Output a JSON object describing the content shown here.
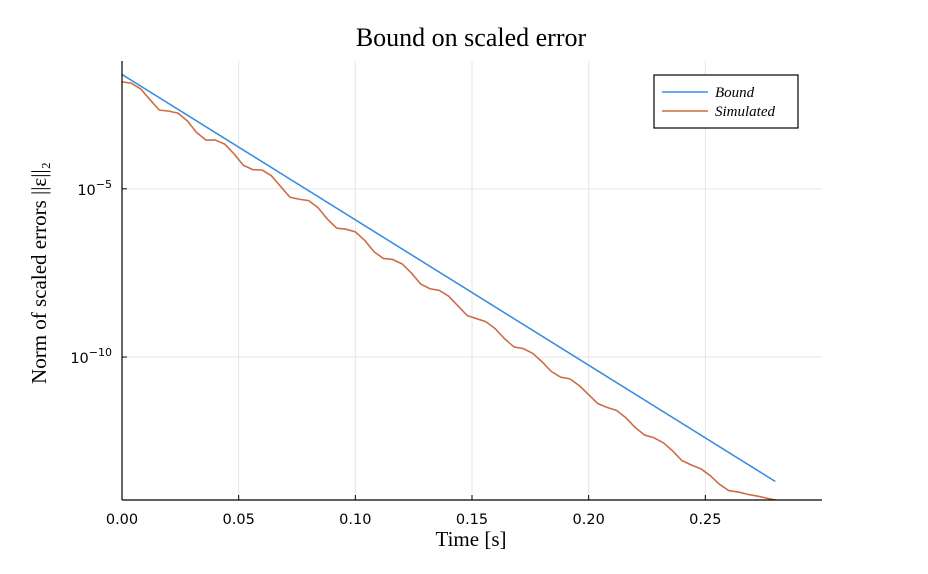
{
  "chart_data": {
    "type": "line",
    "title": "Bound on scaled error",
    "xlabel": "Time [s]",
    "ylabel": "Norm of scaled errors ||ε||₂",
    "y_scale": "log10",
    "xlim": [
      0.0,
      0.3
    ],
    "ylim_log10": [
      -14.25,
      -1.2
    ],
    "x_ticks": [
      0.0,
      0.05,
      0.1,
      0.15,
      0.2,
      0.25
    ],
    "x_tick_labels": [
      "0.00",
      "0.05",
      "0.10",
      "0.15",
      "0.20",
      "0.25"
    ],
    "y_ticks_log10": [
      -5,
      -10
    ],
    "y_tick_labels": [
      {
        "base": "10",
        "exp": "−5"
      },
      {
        "base": "10",
        "exp": "−10"
      }
    ],
    "grid": true,
    "legend_position": "top-right",
    "series": [
      {
        "name": "Bound",
        "color": "#3a8fe0",
        "x": [
          0.0,
          0.28
        ],
        "log10_y": [
          -1.6,
          -13.7
        ]
      },
      {
        "name": "Simulated",
        "color": "#cc6d45",
        "x": [
          0.0,
          0.004,
          0.008,
          0.012,
          0.016,
          0.02,
          0.024,
          0.028,
          0.032,
          0.036,
          0.04,
          0.044,
          0.048,
          0.052,
          0.056,
          0.06,
          0.064,
          0.068,
          0.072,
          0.076,
          0.08,
          0.084,
          0.088,
          0.092,
          0.096,
          0.1,
          0.104,
          0.108,
          0.112,
          0.116,
          0.12,
          0.124,
          0.128,
          0.132,
          0.136,
          0.14,
          0.144,
          0.148,
          0.152,
          0.156,
          0.16,
          0.164,
          0.168,
          0.172,
          0.176,
          0.18,
          0.184,
          0.188,
          0.192,
          0.196,
          0.2,
          0.204,
          0.208,
          0.212,
          0.216,
          0.22,
          0.224,
          0.228,
          0.232,
          0.236,
          0.24,
          0.244,
          0.248,
          0.252,
          0.256,
          0.26,
          0.264,
          0.268,
          0.272,
          0.276,
          0.28
        ],
        "log10_y": [
          -1.82,
          -1.86,
          -2.03,
          -2.35,
          -2.66,
          -2.69,
          -2.75,
          -2.98,
          -3.33,
          -3.55,
          -3.55,
          -3.67,
          -3.96,
          -4.3,
          -4.43,
          -4.44,
          -4.61,
          -4.93,
          -5.25,
          -5.31,
          -5.35,
          -5.56,
          -5.9,
          -6.17,
          -6.2,
          -6.28,
          -6.53,
          -6.87,
          -7.07,
          -7.1,
          -7.23,
          -7.5,
          -7.83,
          -7.97,
          -8.02,
          -8.19,
          -8.48,
          -8.77,
          -8.86,
          -8.95,
          -9.16,
          -9.46,
          -9.7,
          -9.75,
          -9.89,
          -10.14,
          -10.43,
          -10.6,
          -10.65,
          -10.85,
          -11.12,
          -11.39,
          -11.5,
          -11.59,
          -11.81,
          -12.1,
          -12.32,
          -12.4,
          -12.55,
          -12.79,
          -13.08,
          -13.21,
          -13.32,
          -13.52,
          -13.78,
          -13.97,
          -14.01,
          -14.08,
          -14.13,
          -14.19,
          -14.25
        ]
      }
    ]
  }
}
